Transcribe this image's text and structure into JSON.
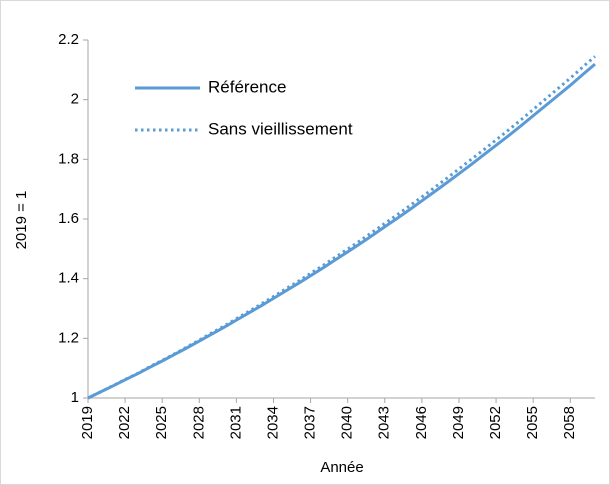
{
  "chart_data": {
    "type": "line",
    "y_label": "2019 = 1",
    "x_label": "Année",
    "x": [
      2019,
      2020,
      2021,
      2022,
      2023,
      2024,
      2025,
      2026,
      2027,
      2028,
      2029,
      2030,
      2031,
      2032,
      2033,
      2034,
      2035,
      2036,
      2037,
      2038,
      2039,
      2040,
      2041,
      2042,
      2043,
      2044,
      2045,
      2046,
      2047,
      2048,
      2049,
      2050,
      2051,
      2052,
      2053,
      2054,
      2055,
      2056,
      2057,
      2058,
      2059,
      2060
    ],
    "series": [
      {
        "name": "Référence",
        "color": "#5b9bd5",
        "line_style": "solid",
        "values": [
          1.0,
          1.02,
          1.04,
          1.061,
          1.081,
          1.103,
          1.124,
          1.146,
          1.168,
          1.191,
          1.214,
          1.237,
          1.261,
          1.285,
          1.309,
          1.334,
          1.359,
          1.384,
          1.41,
          1.436,
          1.463,
          1.49,
          1.517,
          1.545,
          1.574,
          1.602,
          1.631,
          1.661,
          1.691,
          1.721,
          1.752,
          1.783,
          1.815,
          1.847,
          1.879,
          1.912,
          1.946,
          1.98,
          2.014,
          2.048,
          2.084,
          2.119
        ]
      },
      {
        "name": "Sans vieillissement",
        "color": "#5b9bd5",
        "line_style": "dotted",
        "values": [
          1.0,
          1.02,
          1.041,
          1.062,
          1.082,
          1.105,
          1.126,
          1.148,
          1.171,
          1.194,
          1.218,
          1.241,
          1.266,
          1.29,
          1.315,
          1.34,
          1.366,
          1.391,
          1.418,
          1.444,
          1.472,
          1.499,
          1.527,
          1.556,
          1.585,
          1.614,
          1.644,
          1.674,
          1.705,
          1.736,
          1.768,
          1.8,
          1.832,
          1.865,
          1.898,
          1.932,
          1.967,
          2.002,
          2.037,
          2.072,
          2.109,
          2.145
        ]
      }
    ],
    "xlim": [
      2019,
      2060
    ],
    "xticks": [
      2019,
      2022,
      2025,
      2028,
      2031,
      2034,
      2037,
      2040,
      2043,
      2046,
      2049,
      2052,
      2055,
      2058
    ],
    "ylim": [
      1,
      2.2
    ],
    "yticks": [
      1,
      1.2,
      1.4,
      1.6,
      1.8,
      2,
      2.2
    ],
    "grid": false,
    "legend": "upper left"
  }
}
